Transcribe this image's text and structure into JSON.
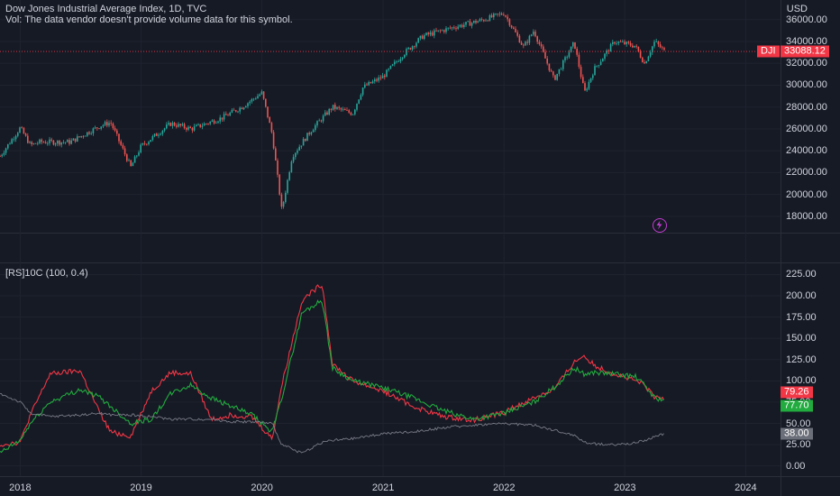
{
  "header": {
    "title": "Dow Jones Industrial Average Index, 1D, TVC",
    "volume_note": "Vol: The data vendor doesn't provide volume data for this symbol.",
    "currency": "USD"
  },
  "price_pane": {
    "symbol": "DJI",
    "last_price": "33088.12",
    "last_price_value": 33088.12,
    "y_ticks": [
      "36000.00",
      "34000.00",
      "32000.00",
      "30000.00",
      "28000.00",
      "26000.00",
      "24000.00",
      "22000.00",
      "20000.00",
      "18000.00"
    ],
    "up_color": "#26a69a",
    "down_color": "#ef5350"
  },
  "indicator_pane": {
    "name": "[RS]10C (100, 0.4)",
    "y_ticks": [
      "225.00",
      "200.00",
      "175.00",
      "150.00",
      "125.00",
      "100.00",
      "75.00",
      "50.00",
      "25.00",
      "0.00"
    ],
    "labels": [
      {
        "text": "79.26",
        "value": 79.26,
        "color": "#f23645"
      },
      {
        "text": "77.70",
        "value": 77.7,
        "color": "#22ab3e"
      },
      {
        "text": "38.00",
        "value": 38.0,
        "color": "#6b6f79"
      }
    ]
  },
  "x_axis": {
    "labels": [
      "2018",
      "2019",
      "2020",
      "2021",
      "2022",
      "2023",
      "2024"
    ]
  },
  "chart_data": [
    {
      "type": "candlestick",
      "title": "Dow Jones Industrial Average Index, 1D, TVC",
      "x": [
        "2017-11",
        "2018-01",
        "2018-02",
        "2018-03",
        "2018-06",
        "2018-09",
        "2018-10",
        "2018-12",
        "2019-01",
        "2019-04",
        "2019-06",
        "2019-09",
        "2019-11",
        "2020-01",
        "2020-02",
        "2020-03",
        "2020-04",
        "2020-06",
        "2020-08",
        "2020-10",
        "2020-11",
        "2021-01",
        "2021-03",
        "2021-05",
        "2021-08",
        "2021-11",
        "2022-01",
        "2022-03",
        "2022-04",
        "2022-06",
        "2022-08",
        "2022-09",
        "2022-10",
        "2022-12",
        "2023-02",
        "2023-03",
        "2023-04",
        "2023-05"
      ],
      "close": [
        23500,
        26100,
        24500,
        24800,
        24800,
        26300,
        26600,
        22500,
        24400,
        26500,
        26000,
        27000,
        28000,
        29300,
        25500,
        18500,
        23500,
        26000,
        28000,
        27400,
        29800,
        30800,
        32800,
        34500,
        35300,
        36000,
        36600,
        33500,
        35000,
        30500,
        33900,
        29300,
        31500,
        34000,
        33600,
        32000,
        34000,
        33088.12
      ],
      "y_unit": "USD",
      "ylim": [
        16500,
        37800
      ]
    },
    {
      "type": "line",
      "title": "[RS]10C (100, 0.4)",
      "x": [
        "2017-11",
        "2018-01",
        "2018-02",
        "2018-04",
        "2018-07",
        "2018-09",
        "2018-10",
        "2018-12",
        "2019-02",
        "2019-04",
        "2019-06",
        "2019-08",
        "2019-10",
        "2019-12",
        "2020-02",
        "2020-03",
        "2020-05",
        "2020-07",
        "2020-08",
        "2020-10",
        "2021-01",
        "2021-04",
        "2021-07",
        "2021-10",
        "2022-01",
        "2022-04",
        "2022-06",
        "2022-08",
        "2022-09",
        "2022-10",
        "2022-12",
        "2023-02",
        "2023-03",
        "2023-04",
        "2023-05"
      ],
      "series": [
        {
          "color": "#f23645",
          "values": [
            25,
            28,
            60,
            108,
            112,
            60,
            40,
            35,
            88,
            110,
            108,
            55,
            60,
            58,
            32,
            95,
            195,
            214,
            120,
            100,
            88,
            70,
            58,
            54,
            63,
            80,
            90,
            122,
            130,
            118,
            108,
            100,
            95,
            80,
            79.26
          ]
        },
        {
          "color": "#22ab3e",
          "values": [
            15,
            30,
            50,
            75,
            90,
            80,
            70,
            50,
            55,
            85,
            95,
            80,
            70,
            60,
            40,
            80,
            180,
            195,
            115,
            100,
            92,
            80,
            65,
            55,
            62,
            75,
            92,
            115,
            108,
            110,
            108,
            105,
            95,
            80,
            77.7
          ]
        },
        {
          "color": "#787b86",
          "values": [
            85,
            75,
            62,
            58,
            60,
            62,
            60,
            60,
            58,
            55,
            55,
            55,
            52,
            52,
            50,
            25,
            15,
            28,
            30,
            32,
            38,
            40,
            45,
            48,
            50,
            48,
            42,
            36,
            28,
            26,
            25,
            27,
            30,
            34,
            38.0
          ]
        }
      ],
      "ylim": [
        -12,
        235
      ]
    }
  ]
}
